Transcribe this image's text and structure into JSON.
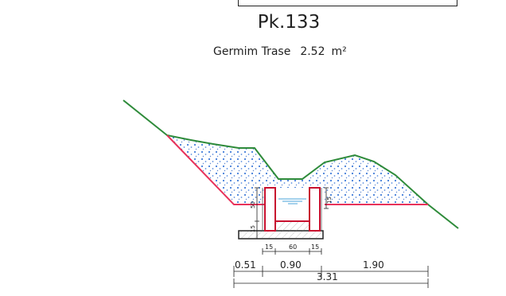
{
  "section": {
    "station": "Pk.133",
    "area_label": "Germim Trase",
    "area_value": "2.52",
    "area_unit": "m²"
  },
  "dimensions": {
    "small_labels": [
      "15",
      "60",
      "15"
    ],
    "left_height": "15",
    "left_height_mid": "50",
    "right_height": "15",
    "segments": [
      "0.51",
      "0.90",
      "1.90"
    ],
    "total": "3.31"
  },
  "colors": {
    "terrain_line": "#2e8b3a",
    "cut_line": "#e8325a",
    "channel_wall": "#c8102e",
    "fill_dots": "#2f6fd6",
    "ink": "#222222"
  }
}
